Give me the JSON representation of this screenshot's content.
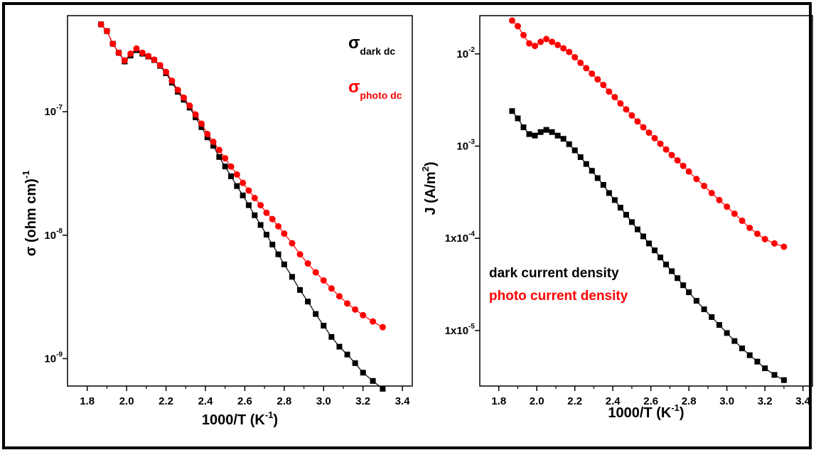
{
  "colors": {
    "dark": "#000000",
    "photo": "#ff0000"
  },
  "chart_data": [
    {
      "type": "scatter",
      "title": "",
      "xlabel": "1000/T (K",
      "xlabel_sup": "-1",
      "xlabel_close": ")",
      "ylabel": "σ (ohm cm)",
      "ylabel_sup": "-1",
      "yscale": "log",
      "xlim": [
        1.7,
        3.45
      ],
      "ylim": [
        6e-10,
        6e-07
      ],
      "x_ticks": [
        1.8,
        2.0,
        2.2,
        2.4,
        2.6,
        2.8,
        3.0,
        3.2,
        3.4
      ],
      "x_tick_labels": [
        "1.8",
        "2.0",
        "2.2",
        "2.4",
        "2.6",
        "2.8",
        "3.0",
        "3.2",
        "3.4"
      ],
      "y_ticks": [
        {
          "value": 1e-07,
          "base": "10",
          "exp": "-7"
        },
        {
          "value": 1e-08,
          "base": "10",
          "exp": "-8"
        },
        {
          "value": 1e-09,
          "base": "10",
          "exp": "-9"
        }
      ],
      "legend": [
        {
          "symbol": "σ",
          "sub": "dark dc",
          "color": "#000000"
        },
        {
          "symbol": "σ",
          "sub": "photo dc",
          "color": "#ff0000"
        }
      ],
      "legend_position": "top-right",
      "series": [
        {
          "key": "dark",
          "marker": "square",
          "color": "#000000",
          "x": [
            1.87,
            1.9,
            1.93,
            1.96,
            1.99,
            2.02,
            2.05,
            2.08,
            2.11,
            2.14,
            2.17,
            2.2,
            2.23,
            2.26,
            2.29,
            2.32,
            2.35,
            2.38,
            2.41,
            2.44,
            2.47,
            2.5,
            2.53,
            2.56,
            2.59,
            2.62,
            2.65,
            2.68,
            2.71,
            2.74,
            2.77,
            2.8,
            2.84,
            2.88,
            2.92,
            2.96,
            3.0,
            3.04,
            3.08,
            3.12,
            3.16,
            3.2,
            3.25,
            3.3
          ],
          "y": [
            5.1e-07,
            4.5e-07,
            3.55e-07,
            3e-07,
            2.55e-07,
            2.85e-07,
            3.15e-07,
            2.95e-07,
            2.8e-07,
            2.62e-07,
            2.35e-07,
            2.05e-07,
            1.72e-07,
            1.45e-07,
            1.25e-07,
            1.08e-07,
            9e-08,
            7.5e-08,
            6.2e-08,
            5.3e-08,
            4.3e-08,
            3.6e-08,
            3e-08,
            2.5e-08,
            2.1e-08,
            1.75e-08,
            1.45e-08,
            1.21e-08,
            1.01e-08,
            8.4e-09,
            7e-09,
            5.8e-09,
            4.6e-09,
            3.6e-09,
            2.9e-09,
            2.3e-09,
            1.85e-09,
            1.5e-09,
            1.25e-09,
            1.08e-09,
            9.2e-10,
            7.7e-10,
            6.6e-10,
            5.7e-10
          ]
        },
        {
          "key": "photo",
          "marker": "circle",
          "color": "#ff0000",
          "x": [
            1.87,
            1.9,
            1.93,
            1.96,
            1.99,
            2.02,
            2.05,
            2.08,
            2.11,
            2.14,
            2.17,
            2.2,
            2.23,
            2.26,
            2.29,
            2.32,
            2.35,
            2.38,
            2.41,
            2.44,
            2.47,
            2.5,
            2.53,
            2.56,
            2.59,
            2.62,
            2.65,
            2.68,
            2.71,
            2.74,
            2.77,
            2.8,
            2.84,
            2.88,
            2.92,
            2.96,
            3.0,
            3.04,
            3.08,
            3.12,
            3.16,
            3.2,
            3.25,
            3.3
          ],
          "y": [
            5.1e-07,
            4.5e-07,
            3.55e-07,
            3e-07,
            2.6e-07,
            2.95e-07,
            3.25e-07,
            3e-07,
            2.82e-07,
            2.64e-07,
            2.38e-07,
            2.1e-07,
            1.78e-07,
            1.5e-07,
            1.3e-07,
            1.12e-07,
            9.5e-08,
            8e-08,
            6.6e-08,
            5.7e-08,
            4.9e-08,
            4.2e-08,
            3.6e-08,
            3.1e-08,
            2.65e-08,
            2.3e-08,
            2e-08,
            1.75e-08,
            1.52e-08,
            1.35e-08,
            1.18e-08,
            1.03e-08,
            8.6e-09,
            7e-09,
            5.9e-09,
            5e-09,
            4.3e-09,
            3.7e-09,
            3.2e-09,
            2.8e-09,
            2.5e-09,
            2.25e-09,
            2e-09,
            1.8e-09
          ]
        }
      ]
    },
    {
      "type": "scatter",
      "title": "",
      "xlabel": "1000/T (K",
      "xlabel_sup": "-1",
      "xlabel_close": ")",
      "ylabel": "J (A/m",
      "ylabel_sup": "2",
      "ylabel_close": ")",
      "yscale": "log",
      "xlim": [
        1.7,
        3.45
      ],
      "ylim": [
        2.5e-06,
        0.026
      ],
      "x_ticks": [
        1.8,
        2.0,
        2.2,
        2.4,
        2.6,
        2.8,
        3.0,
        3.2,
        3.4
      ],
      "x_tick_labels": [
        "1.8",
        "2.0",
        "2.2",
        "2.4",
        "2.6",
        "2.8",
        "3.0",
        "3.2",
        "3.4"
      ],
      "y_ticks": [
        {
          "value": 0.01,
          "base": "10",
          "exp": "-2"
        },
        {
          "value": 0.001,
          "base": "10",
          "exp": "-3"
        },
        {
          "value": 0.0001,
          "base": "1x10",
          "exp": "-4"
        },
        {
          "value": 1e-05,
          "base": "1x10",
          "exp": "-5"
        }
      ],
      "legend": [
        {
          "text": "dark current density",
          "color": "#000000"
        },
        {
          "text": "photo current density",
          "color": "#ff0000"
        }
      ],
      "legend_position": "center-left",
      "series": [
        {
          "key": "dark",
          "marker": "square",
          "color": "#000000",
          "x": [
            1.87,
            1.9,
            1.93,
            1.96,
            1.99,
            2.02,
            2.05,
            2.08,
            2.11,
            2.14,
            2.17,
            2.2,
            2.23,
            2.26,
            2.29,
            2.32,
            2.35,
            2.38,
            2.41,
            2.44,
            2.47,
            2.5,
            2.53,
            2.56,
            2.59,
            2.62,
            2.65,
            2.68,
            2.71,
            2.74,
            2.77,
            2.8,
            2.84,
            2.88,
            2.92,
            2.96,
            3.0,
            3.04,
            3.08,
            3.12,
            3.16,
            3.2,
            3.25,
            3.3
          ],
          "y": [
            0.0024,
            0.002,
            0.0016,
            0.00135,
            0.0013,
            0.00142,
            0.0015,
            0.00142,
            0.0013,
            0.0012,
            0.00105,
            0.0009,
            0.00076,
            0.00064,
            0.00054,
            0.00045,
            0.00038,
            0.00031,
            0.00026,
            0.000215,
            0.00018,
            0.00015,
            0.000125,
            0.000105,
            8.8e-05,
            7.4e-05,
            6.2e-05,
            5.2e-05,
            4.4e-05,
            3.7e-05,
            3.1e-05,
            2.6e-05,
            2.1e-05,
            1.7e-05,
            1.4e-05,
            1.15e-05,
            9.4e-06,
            7.7e-06,
            6.4e-06,
            5.4e-06,
            4.6e-06,
            3.9e-06,
            3.3e-06,
            2.9e-06
          ]
        },
        {
          "key": "photo",
          "marker": "circle",
          "color": "#ff0000",
          "x": [
            1.87,
            1.9,
            1.93,
            1.96,
            1.99,
            2.02,
            2.05,
            2.08,
            2.11,
            2.14,
            2.17,
            2.2,
            2.23,
            2.26,
            2.29,
            2.32,
            2.35,
            2.38,
            2.41,
            2.44,
            2.47,
            2.5,
            2.53,
            2.56,
            2.59,
            2.62,
            2.65,
            2.68,
            2.71,
            2.74,
            2.77,
            2.8,
            2.84,
            2.88,
            2.92,
            2.96,
            3.0,
            3.04,
            3.08,
            3.12,
            3.16,
            3.2,
            3.25,
            3.3
          ],
          "y": [
            0.023,
            0.02,
            0.016,
            0.013,
            0.0122,
            0.0135,
            0.0145,
            0.0135,
            0.0125,
            0.0115,
            0.0105,
            0.0092,
            0.008,
            0.007,
            0.0061,
            0.0053,
            0.0046,
            0.0039,
            0.0034,
            0.0029,
            0.0025,
            0.00215,
            0.00185,
            0.0016,
            0.0014,
            0.00122,
            0.00106,
            0.00092,
            0.0008,
            0.0007,
            0.00061,
            0.00053,
            0.00044,
            0.00037,
            0.00031,
            0.00026,
            0.00022,
            0.000185,
            0.000155,
            0.00013,
            0.000112,
            9.8e-05,
            8.8e-05,
            8.1e-05
          ]
        }
      ]
    }
  ]
}
